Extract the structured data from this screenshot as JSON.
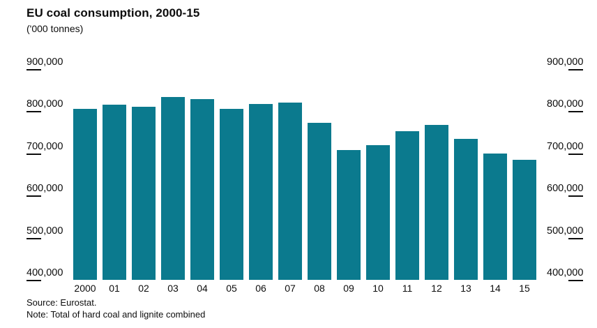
{
  "header": {
    "title": "EU coal consumption, 2000-15",
    "subtitle": "('000 tonnes)"
  },
  "chart_data": {
    "type": "bar",
    "title": "EU coal consumption, 2000-15",
    "subtitle": "('000 tonnes)",
    "categories": [
      "2000",
      "01",
      "02",
      "03",
      "04",
      "05",
      "06",
      "07",
      "08",
      "09",
      "10",
      "11",
      "12",
      "13",
      "14",
      "15"
    ],
    "values": [
      805000,
      816000,
      810000,
      833000,
      828000,
      806000,
      818000,
      820000,
      772000,
      708000,
      719000,
      752000,
      768000,
      734000,
      700000,
      684000
    ],
    "xlabel": "",
    "ylabel": "'000 tonnes",
    "ylim": [
      400000,
      900000
    ],
    "yticks": [
      400000,
      500000,
      600000,
      700000,
      800000,
      900000
    ],
    "ytick_sides": [
      "left",
      "right"
    ],
    "grid": false,
    "legend": "none",
    "bar_color": "#0b7a8e",
    "text_color": "#0d0d0d"
  },
  "footer": {
    "source": "Source: Eurostat.",
    "note": "Note: Total of hard coal and lignite combined"
  }
}
